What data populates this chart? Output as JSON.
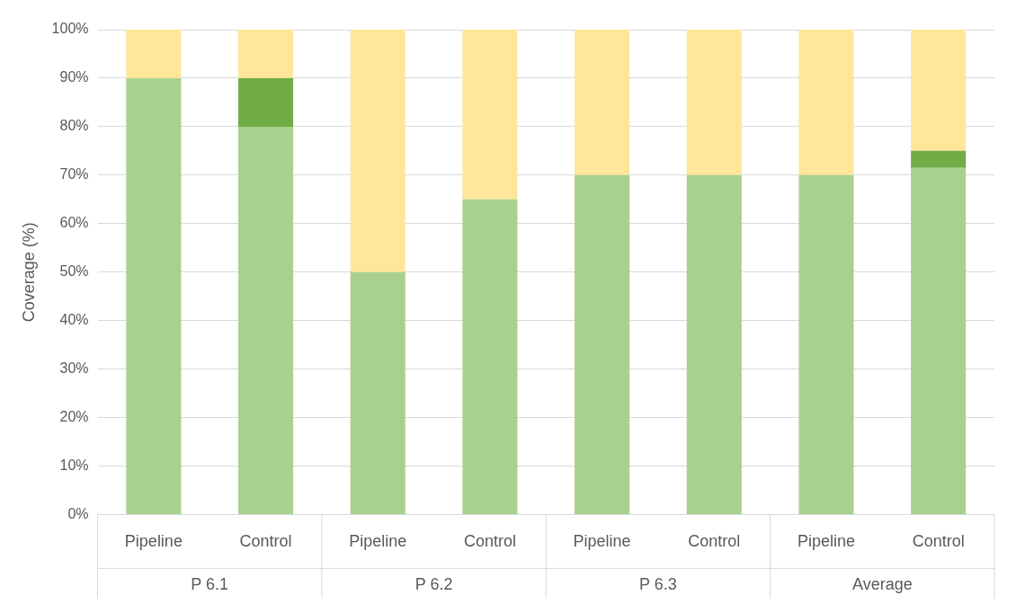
{
  "chart_data": {
    "type": "bar",
    "stacked": true,
    "ylabel": "Coverage (%)",
    "categories": [
      "Pipeline",
      "Control",
      "Pipeline",
      "Control",
      "Pipeline",
      "Control",
      "Pipeline",
      "Control"
    ],
    "annotations": [
      "P 6.1",
      "P 6.2",
      "P 6.3",
      "Average"
    ],
    "series": [
      {
        "color": "#a9d18e",
        "values": [
          90,
          80,
          50,
          65,
          70,
          70,
          70,
          71.5
        ]
      },
      {
        "color": "#70ad47",
        "values": [
          0,
          10,
          0,
          0,
          0,
          0,
          0,
          3.5
        ]
      },
      {
        "color": "#ffe699",
        "values": [
          10,
          10,
          50,
          35,
          30,
          30,
          30,
          25
        ]
      }
    ],
    "ylim": [
      0,
      100
    ],
    "yticks": [
      {
        "value": 0,
        "label": "0%"
      },
      {
        "value": 10,
        "label": "10%"
      },
      {
        "value": 20,
        "label": "20%"
      },
      {
        "value": 30,
        "label": "30%"
      },
      {
        "value": 40,
        "label": "40%"
      },
      {
        "value": 50,
        "label": "50%"
      },
      {
        "value": 60,
        "label": "60%"
      },
      {
        "value": 70,
        "label": "70%"
      },
      {
        "value": 80,
        "label": "80%"
      },
      {
        "value": 90,
        "label": "90%"
      },
      {
        "value": 100,
        "label": "100%"
      }
    ],
    "grid": "y",
    "legend": false
  }
}
